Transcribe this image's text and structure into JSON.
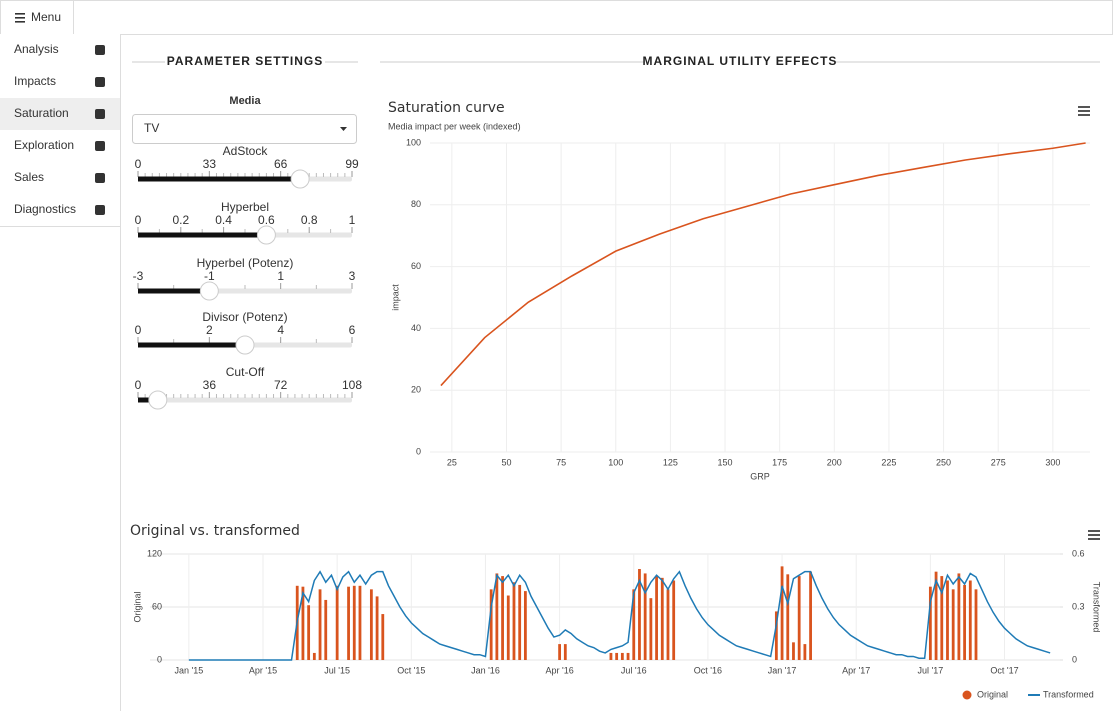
{
  "menu": {
    "label": "Menu"
  },
  "sidebar": {
    "items": [
      "Analysis",
      "Impacts",
      "Saturation",
      "Exploration",
      "Sales",
      "Diagnostics"
    ],
    "active": 2
  },
  "sections": [
    "PARAMETER SETTINGS",
    "MARGINAL UTILITY EFFECTS"
  ],
  "media": {
    "label": "Media",
    "value": "TV"
  },
  "sliders": [
    {
      "label": "AdStock",
      "min": 0,
      "max": 99,
      "value": 75,
      "ticks": [
        0,
        33,
        66,
        99
      ]
    },
    {
      "label": "Hyperbel",
      "min": 0,
      "max": 1,
      "value": 0.6,
      "ticks": [
        0,
        0.2,
        0.4,
        0.6,
        0.8,
        1
      ]
    },
    {
      "label": "Hyperbel (Potenz)",
      "min": -3,
      "max": 3,
      "value": -1,
      "ticks": [
        -3,
        -1,
        1,
        3
      ]
    },
    {
      "label": "Divisor (Potenz)",
      "min": 0,
      "max": 6,
      "value": 3,
      "ticks": [
        0,
        2,
        4,
        6
      ]
    },
    {
      "label": "Cut-Off",
      "min": 0,
      "max": 108,
      "value": 10,
      "ticks": [
        0,
        36,
        72,
        108
      ]
    }
  ],
  "chart_data": [
    {
      "type": "line",
      "title": "Saturation curve",
      "subtitle": "Media impact per week (indexed)",
      "x_label": "GRP",
      "y_label": "impact",
      "grid": true,
      "x": [
        20,
        40,
        60,
        80,
        100,
        120,
        140,
        160,
        180,
        200,
        220,
        240,
        260,
        280,
        300,
        315
      ],
      "series": [
        {
          "name": "impact",
          "color": "#d9541e",
          "values": [
            21.5,
            37,
            48.5,
            57,
            65,
            70.5,
            75.5,
            79.5,
            83.5,
            86.5,
            89.5,
            92,
            94.5,
            96.5,
            98.3,
            100
          ]
        }
      ],
      "xlim": [
        15,
        317
      ],
      "xticks": [
        25,
        50,
        75,
        100,
        125,
        150,
        175,
        200,
        225,
        250,
        275,
        300
      ],
      "ylim": [
        0,
        100
      ],
      "yticks": [
        0,
        20,
        40,
        60,
        80,
        100
      ]
    },
    {
      "type": "combo",
      "title": "Original vs. transformed",
      "y_label": "Original",
      "y2_label": "Transformed",
      "grid": true,
      "legend": "bottom-right",
      "categories": [
        "Jan '15",
        null,
        null,
        null,
        null,
        null,
        null,
        null,
        null,
        null,
        null,
        null,
        null,
        "Apr '15",
        null,
        null,
        null,
        null,
        null,
        null,
        null,
        null,
        null,
        null,
        null,
        null,
        "Jul '15",
        null,
        null,
        null,
        null,
        null,
        null,
        null,
        null,
        null,
        null,
        null,
        null,
        "Oct '15",
        null,
        null,
        null,
        null,
        null,
        null,
        null,
        null,
        null,
        null,
        null,
        null,
        "Jan '16",
        null,
        null,
        null,
        null,
        null,
        null,
        null,
        null,
        null,
        null,
        null,
        null,
        "Apr '16",
        null,
        null,
        null,
        null,
        null,
        null,
        null,
        null,
        null,
        null,
        null,
        null,
        "Jul '16",
        null,
        null,
        null,
        null,
        null,
        null,
        null,
        null,
        null,
        null,
        null,
        null,
        "Oct '16",
        null,
        null,
        null,
        null,
        null,
        null,
        null,
        null,
        null,
        null,
        null,
        null,
        "Jan '17",
        null,
        null,
        null,
        null,
        null,
        null,
        null,
        null,
        null,
        null,
        null,
        null,
        "Apr '17",
        null,
        null,
        null,
        null,
        null,
        null,
        null,
        null,
        null,
        null,
        null,
        null,
        "Jul '17",
        null,
        null,
        null,
        null,
        null,
        null,
        null,
        null,
        null,
        null,
        null,
        null,
        "Oct '17",
        null,
        null,
        null,
        null,
        null,
        null,
        null,
        null
      ],
      "series": [
        {
          "name": "Original",
          "type": "bar",
          "color": "#d9541e",
          "values": [
            0,
            0,
            0,
            0,
            0,
            0,
            0,
            0,
            0,
            0,
            0,
            0,
            0,
            0,
            0,
            0,
            0,
            0,
            0,
            84,
            83,
            62,
            8,
            80,
            68,
            0,
            84,
            0,
            83,
            84,
            84,
            0,
            80,
            72,
            52,
            0,
            0,
            0,
            0,
            0,
            0,
            0,
            0,
            0,
            0,
            0,
            0,
            0,
            0,
            0,
            0,
            0,
            0,
            80,
            98,
            95,
            73,
            88,
            85,
            78,
            0,
            0,
            0,
            0,
            0,
            18,
            18,
            0,
            0,
            0,
            0,
            0,
            0,
            0,
            8,
            8,
            8,
            8,
            80,
            103,
            98,
            70,
            95,
            93,
            80,
            90,
            0,
            0,
            0,
            0,
            0,
            0,
            0,
            0,
            0,
            0,
            0,
            0,
            0,
            0,
            0,
            0,
            0,
            55,
            106,
            97,
            20,
            95,
            18,
            100,
            0,
            0,
            0,
            0,
            0,
            0,
            0,
            0,
            0,
            0,
            0,
            0,
            0,
            0,
            0,
            0,
            0,
            0,
            0,
            0,
            83,
            100,
            95,
            90,
            80,
            98,
            85,
            90,
            80,
            0,
            0,
            0,
            0,
            0,
            0,
            0,
            0,
            0,
            0,
            0,
            0,
            0
          ]
        },
        {
          "name": "Transformed",
          "type": "line",
          "color": "#1f7bb6",
          "axis": "y2",
          "values": [
            0,
            0,
            0,
            0,
            0,
            0,
            0,
            0,
            0,
            0,
            0,
            0,
            0,
            0,
            0,
            0,
            0,
            0,
            0,
            0.22,
            0.38,
            0.33,
            0.45,
            0.5,
            0.44,
            0.48,
            0.4,
            0.47,
            0.5,
            0.44,
            0.48,
            0.43,
            0.48,
            0.5,
            0.5,
            0.42,
            0.36,
            0.3,
            0.25,
            0.21,
            0.18,
            0.15,
            0.13,
            0.11,
            0.09,
            0.08,
            0.07,
            0.06,
            0.05,
            0.04,
            0.03,
            0.03,
            0.02,
            0.3,
            0.48,
            0.44,
            0.48,
            0.42,
            0.48,
            0.44,
            0.36,
            0.3,
            0.24,
            0.18,
            0.13,
            0.14,
            0.17,
            0.15,
            0.12,
            0.1,
            0.08,
            0.07,
            0.05,
            0.04,
            0.06,
            0.07,
            0.08,
            0.1,
            0.38,
            0.45,
            0.38,
            0.44,
            0.48,
            0.45,
            0.4,
            0.46,
            0.5,
            0.42,
            0.35,
            0.29,
            0.24,
            0.2,
            0.17,
            0.14,
            0.12,
            0.1,
            0.08,
            0.07,
            0.06,
            0.05,
            0.04,
            0.03,
            0.02,
            0.2,
            0.42,
            0.32,
            0.46,
            0.48,
            0.5,
            0.5,
            0.42,
            0.35,
            0.29,
            0.24,
            0.2,
            0.17,
            0.14,
            0.12,
            0.1,
            0.08,
            0.07,
            0.06,
            0.05,
            0.04,
            0.03,
            0.03,
            0.02,
            0.02,
            0.01,
            0.01,
            0.33,
            0.45,
            0.38,
            0.48,
            0.43,
            0.47,
            0.43,
            0.49,
            0.47,
            0.4,
            0.33,
            0.27,
            0.22,
            0.18,
            0.15,
            0.12,
            0.1,
            0.08,
            0.07,
            0.06,
            0.05,
            0.04
          ]
        }
      ],
      "ylim": [
        0,
        120
      ],
      "yticks": [
        0,
        60,
        120
      ],
      "y2lim": [
        0,
        0.6
      ],
      "y2ticks": [
        0,
        0.3,
        0.6
      ]
    }
  ]
}
